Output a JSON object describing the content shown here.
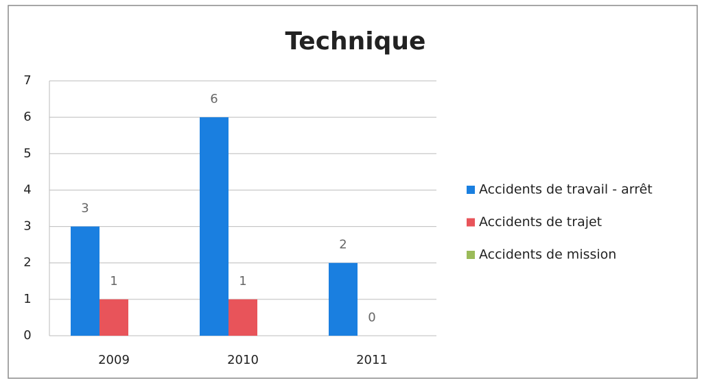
{
  "chart_data": {
    "type": "bar",
    "title": "Technique",
    "categories": [
      "2009",
      "2010",
      "2011"
    ],
    "series": [
      {
        "name": "Accidents de travail - arrêt",
        "color": "#1a7fe0",
        "values": [
          3,
          6,
          2
        ]
      },
      {
        "name": "Accidents de trajet",
        "color": "#e8545a",
        "values": [
          1,
          1,
          0
        ]
      },
      {
        "name": "Accidents de mission",
        "color": "#9bbb59",
        "values": [
          null,
          null,
          null
        ]
      }
    ],
    "ylim": [
      0,
      7
    ],
    "yticks": [
      0,
      1,
      2,
      3,
      4,
      5,
      6,
      7
    ],
    "grid": true,
    "legend": "right"
  }
}
